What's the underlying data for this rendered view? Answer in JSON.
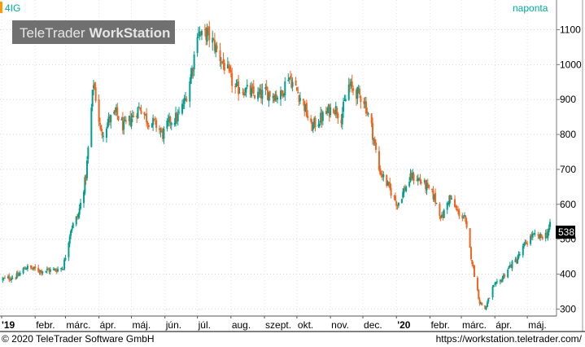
{
  "symbol": "4IG",
  "period_label": "naponta",
  "watermark_brand": "TeleTrader",
  "watermark_product": "WorkStation",
  "last_price_label": "538",
  "footer_copyright": "© 2020 TeleTrader Software GmbH",
  "footer_url": "https://workstation.teletrader.com/",
  "colors": {
    "up": "#009f8f",
    "down": "#f0641e",
    "accent": "#ff9a00",
    "label_teal": "#00a99d"
  },
  "chart_data": {
    "type": "candlestick",
    "title": "4IG",
    "ylim": [
      280,
      1185
    ],
    "y_ticks": [
      300,
      400,
      500,
      600,
      700,
      800,
      900,
      1000,
      1100
    ],
    "x_ticks": [
      "'19",
      "febr.",
      "márc.",
      "ápr.",
      "máj.",
      "jún.",
      "júl.",
      "aug.",
      "szept.",
      "okt.",
      "nov.",
      "dec.",
      "'20",
      "febr.",
      "márc.",
      "ápr.",
      "máj."
    ],
    "grid": true,
    "last_value": 538,
    "series": [
      {
        "date": "2019-01-02",
        "close": 385
      },
      {
        "date": "2019-01-16",
        "close": 395
      },
      {
        "date": "2019-01-23",
        "close": 420
      },
      {
        "date": "2019-02-06",
        "close": 410
      },
      {
        "date": "2019-02-20",
        "close": 412
      },
      {
        "date": "2019-02-27",
        "close": 420
      },
      {
        "date": "2019-03-06",
        "close": 530
      },
      {
        "date": "2019-03-13",
        "close": 570
      },
      {
        "date": "2019-03-20",
        "close": 680
      },
      {
        "date": "2019-03-27",
        "close": 950
      },
      {
        "date": "2019-04-03",
        "close": 800
      },
      {
        "date": "2019-04-10",
        "close": 840
      },
      {
        "date": "2019-04-17",
        "close": 860
      },
      {
        "date": "2019-04-24",
        "close": 820
      },
      {
        "date": "2019-05-02",
        "close": 850
      },
      {
        "date": "2019-05-09",
        "close": 880
      },
      {
        "date": "2019-05-16",
        "close": 840
      },
      {
        "date": "2019-05-23",
        "close": 830
      },
      {
        "date": "2019-05-30",
        "close": 800
      },
      {
        "date": "2019-06-06",
        "close": 840
      },
      {
        "date": "2019-06-13",
        "close": 850
      },
      {
        "date": "2019-06-20",
        "close": 900
      },
      {
        "date": "2019-06-27",
        "close": 1000
      },
      {
        "date": "2019-07-01",
        "close": 1100
      },
      {
        "date": "2019-07-05",
        "close": 1080
      },
      {
        "date": "2019-07-10",
        "close": 1090
      },
      {
        "date": "2019-07-16",
        "close": 1060
      },
      {
        "date": "2019-07-22",
        "close": 1020
      },
      {
        "date": "2019-07-29",
        "close": 980
      },
      {
        "date": "2019-08-05",
        "close": 930
      },
      {
        "date": "2019-08-12",
        "close": 930
      },
      {
        "date": "2019-08-19",
        "close": 920
      },
      {
        "date": "2019-08-26",
        "close": 910
      },
      {
        "date": "2019-09-02",
        "close": 920
      },
      {
        "date": "2019-09-09",
        "close": 915
      },
      {
        "date": "2019-09-16",
        "close": 910
      },
      {
        "date": "2019-09-23",
        "close": 970
      },
      {
        "date": "2019-09-30",
        "close": 930
      },
      {
        "date": "2019-10-07",
        "close": 890
      },
      {
        "date": "2019-10-14",
        "close": 820
      },
      {
        "date": "2019-10-21",
        "close": 840
      },
      {
        "date": "2019-10-28",
        "close": 860
      },
      {
        "date": "2019-11-04",
        "close": 880
      },
      {
        "date": "2019-11-11",
        "close": 850
      },
      {
        "date": "2019-11-18",
        "close": 940
      },
      {
        "date": "2019-11-25",
        "close": 920
      },
      {
        "date": "2019-12-02",
        "close": 900
      },
      {
        "date": "2019-12-09",
        "close": 820
      },
      {
        "date": "2019-12-16",
        "close": 700
      },
      {
        "date": "2019-12-23",
        "close": 660
      },
      {
        "date": "2020-01-02",
        "close": 600
      },
      {
        "date": "2020-01-08",
        "close": 640
      },
      {
        "date": "2020-01-15",
        "close": 680
      },
      {
        "date": "2020-01-22",
        "close": 670
      },
      {
        "date": "2020-01-29",
        "close": 650
      },
      {
        "date": "2020-02-05",
        "close": 620
      },
      {
        "date": "2020-02-12",
        "close": 560
      },
      {
        "date": "2020-02-19",
        "close": 620
      },
      {
        "date": "2020-02-26",
        "close": 580
      },
      {
        "date": "2020-03-04",
        "close": 560
      },
      {
        "date": "2020-03-09",
        "close": 470
      },
      {
        "date": "2020-03-13",
        "close": 400
      },
      {
        "date": "2020-03-18",
        "close": 320
      },
      {
        "date": "2020-03-23",
        "close": 300
      },
      {
        "date": "2020-03-30",
        "close": 360
      },
      {
        "date": "2020-04-06",
        "close": 380
      },
      {
        "date": "2020-04-14",
        "close": 420
      },
      {
        "date": "2020-04-21",
        "close": 440
      },
      {
        "date": "2020-04-28",
        "close": 480
      },
      {
        "date": "2020-05-05",
        "close": 510
      },
      {
        "date": "2020-05-12",
        "close": 505
      },
      {
        "date": "2020-05-19",
        "close": 515
      },
      {
        "date": "2020-05-22",
        "close": 538
      }
    ]
  }
}
